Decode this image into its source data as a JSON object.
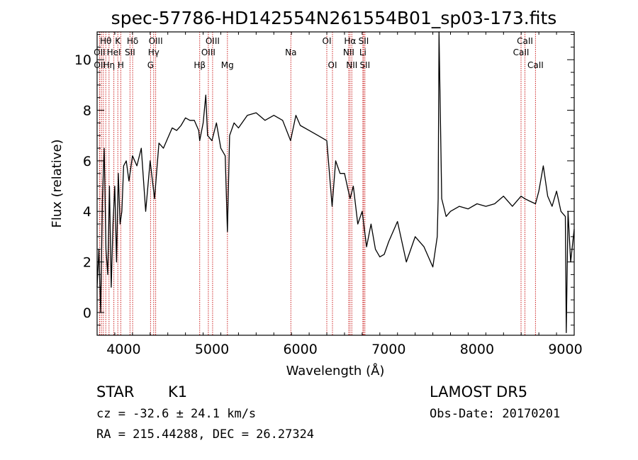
{
  "chart_data": {
    "type": "line",
    "title": "spec-57786-HD142554N261554B01_sp03-173.fits",
    "xlabel": "Wavelength (Å)",
    "ylabel": "Flux (relative)",
    "xlim": [
      3700,
      9100
    ],
    "ylim": [
      -0.9,
      11.1
    ],
    "xticks": [
      4000,
      5000,
      6000,
      7000,
      8000,
      9000
    ],
    "yticks": [
      0,
      2,
      4,
      6,
      8,
      10
    ],
    "grid": false,
    "series": [
      {
        "x": [
          3700,
          3720,
          3740,
          3760,
          3780,
          3800,
          3820,
          3840,
          3860,
          3880,
          3900,
          3920,
          3940,
          3960,
          3980,
          4000,
          4030,
          4060,
          4100,
          4150,
          4200,
          4250,
          4300,
          4350,
          4400,
          4450,
          4500,
          4550,
          4600,
          4650,
          4700,
          4750,
          4800,
          4850,
          4861,
          4900,
          4930,
          4950,
          5000,
          5050,
          5100,
          5150,
          5175,
          5200,
          5250,
          5300,
          5400,
          5500,
          5600,
          5700,
          5800,
          5890,
          5950,
          6000,
          6100,
          6200,
          6300,
          6360,
          6400,
          6450,
          6500,
          6563,
          6600,
          6650,
          6700,
          6750,
          6800,
          6850,
          6900,
          6950,
          7000,
          7100,
          7200,
          7300,
          7400,
          7500,
          7550,
          7560,
          7570,
          7600,
          7650,
          7700,
          7800,
          7900,
          8000,
          8100,
          8200,
          8300,
          8400,
          8498,
          8542,
          8600,
          8662,
          8700,
          8750,
          8800,
          8850,
          8900,
          8950,
          9000,
          9010,
          9030,
          9060,
          9100
        ],
        "values": [
          1.0,
          2.5,
          0.0,
          4.5,
          6.5,
          2.5,
          1.5,
          5.0,
          1.0,
          3.5,
          5.0,
          2.0,
          5.5,
          3.5,
          4.0,
          5.8,
          6.0,
          5.2,
          6.2,
          5.8,
          6.5,
          4.0,
          6.0,
          4.5,
          6.7,
          6.5,
          6.9,
          7.3,
          7.2,
          7.4,
          7.7,
          7.6,
          7.6,
          7.2,
          6.8,
          7.5,
          8.6,
          7.0,
          6.8,
          7.5,
          6.5,
          6.2,
          3.2,
          7.0,
          7.5,
          7.3,
          7.8,
          7.9,
          7.6,
          7.8,
          7.6,
          6.8,
          7.8,
          7.4,
          7.2,
          7.0,
          6.8,
          4.2,
          6.0,
          5.5,
          5.5,
          4.5,
          5.0,
          3.5,
          4.0,
          2.6,
          3.5,
          2.5,
          2.2,
          2.3,
          2.8,
          3.6,
          2.0,
          3.0,
          2.6,
          1.8,
          3.0,
          4.5,
          11.1,
          4.5,
          3.8,
          4.0,
          4.2,
          4.1,
          4.3,
          4.2,
          4.3,
          4.6,
          4.2,
          4.6,
          4.5,
          4.4,
          4.3,
          4.8,
          5.8,
          4.6,
          4.2,
          4.8,
          4.0,
          3.8,
          -0.8,
          4.0,
          2.0,
          3.3
        ]
      }
    ],
    "line_markers": [
      {
        "label": "Hθ",
        "x": 3798,
        "row": 1
      },
      {
        "label": "K",
        "x": 3934,
        "row": 1
      },
      {
        "label": "Hδ",
        "x": 4102,
        "row": 1
      },
      {
        "label": "OIII",
        "x": 4363,
        "row": 1
      },
      {
        "label": "OIII",
        "x": 5007,
        "row": 1
      },
      {
        "label": "OI",
        "x": 6300,
        "row": 1
      },
      {
        "label": "Hα",
        "x": 6563,
        "row": 1
      },
      {
        "label": "SII",
        "x": 6717,
        "row": 1
      },
      {
        "label": "CaII",
        "x": 8542,
        "row": 1
      },
      {
        "label": "OII",
        "x": 3727,
        "row": 2
      },
      {
        "label": "HeI",
        "x": 3889,
        "row": 2
      },
      {
        "label": "SII",
        "x": 4072,
        "row": 2
      },
      {
        "label": "Hγ",
        "x": 4340,
        "row": 2
      },
      {
        "label": "OIII",
        "x": 4959,
        "row": 2
      },
      {
        "label": "Na",
        "x": 5893,
        "row": 2
      },
      {
        "label": "NII",
        "x": 6548,
        "row": 2
      },
      {
        "label": "Li",
        "x": 6708,
        "row": 2
      },
      {
        "label": "CaII",
        "x": 8498,
        "row": 2
      },
      {
        "label": "OII",
        "x": 3730,
        "row": 3
      },
      {
        "label": "Hη",
        "x": 3835,
        "row": 3
      },
      {
        "label": "H",
        "x": 3968,
        "row": 3
      },
      {
        "label": "G",
        "x": 4305,
        "row": 3
      },
      {
        "label": "Hβ",
        "x": 4861,
        "row": 3
      },
      {
        "label": "Mg",
        "x": 5175,
        "row": 3
      },
      {
        "label": "OI",
        "x": 6364,
        "row": 3
      },
      {
        "label": "NII",
        "x": 6583,
        "row": 3
      },
      {
        "label": "SII",
        "x": 6731,
        "row": 3
      },
      {
        "label": "CaII",
        "x": 8662,
        "row": 3
      }
    ],
    "extra_marker_lines": [
      3750,
      3771,
      3889,
      4102,
      4340,
      4861,
      5007,
      6563,
      6717
    ],
    "colors": {
      "spectrum": "#000000",
      "marker_line": "#cc2222",
      "axis": "#000000"
    }
  },
  "info": {
    "obj_class": "STAR",
    "subclass": "K1",
    "survey": "LAMOST DR5",
    "cz": "cz = -32.6 ± 24.1 km/s",
    "obs_date": "Obs-Date: 20170201",
    "coords": "RA = 215.44288, DEC =  26.27324"
  }
}
